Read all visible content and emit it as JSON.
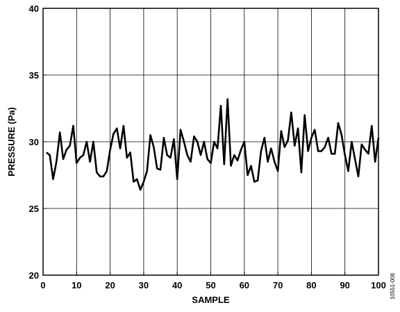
{
  "chart_data": {
    "type": "line",
    "xlabel": "SAMPLE",
    "ylabel": "PRESSURE (Pa)",
    "xlim": [
      0,
      100
    ],
    "ylim": [
      20,
      40
    ],
    "x_ticks": [
      0,
      10,
      20,
      30,
      40,
      50,
      60,
      70,
      80,
      90,
      100
    ],
    "y_ticks": [
      20,
      25,
      30,
      35,
      40
    ],
    "grid": true,
    "figure_code": "10551-008",
    "series": [
      {
        "color": "#000000",
        "x": [
          1,
          2,
          3,
          4,
          5,
          6,
          7,
          8,
          9,
          10,
          11,
          12,
          13,
          14,
          15,
          16,
          17,
          18,
          19,
          20,
          21,
          22,
          23,
          24,
          25,
          26,
          27,
          28,
          29,
          30,
          31,
          32,
          33,
          34,
          35,
          36,
          37,
          38,
          39,
          40,
          41,
          42,
          43,
          44,
          45,
          46,
          47,
          48,
          49,
          50,
          51,
          52,
          53,
          54,
          55,
          56,
          57,
          58,
          59,
          60,
          61,
          62,
          63,
          64,
          65,
          66,
          67,
          68,
          69,
          70,
          71,
          72,
          73,
          74,
          75,
          76,
          77,
          78,
          79,
          80,
          81,
          82,
          83,
          84,
          85,
          86,
          87,
          88,
          89,
          90,
          91,
          92,
          93,
          94,
          95,
          96,
          97,
          98,
          99,
          100
        ],
        "values": [
          29.2,
          29.0,
          27.2,
          28.5,
          30.7,
          28.7,
          29.4,
          29.7,
          31.2,
          28.4,
          28.8,
          29.0,
          30.0,
          28.5,
          30.0,
          27.7,
          27.4,
          27.4,
          27.8,
          29.4,
          30.6,
          31.0,
          29.5,
          31.2,
          28.8,
          29.2,
          27.0,
          27.2,
          26.4,
          27.0,
          27.8,
          30.5,
          29.6,
          28.0,
          27.9,
          30.3,
          29.0,
          28.8,
          30.2,
          27.2,
          30.9,
          30.0,
          29.0,
          28.5,
          30.4,
          30.0,
          29.0,
          30.0,
          28.7,
          28.4,
          30.0,
          29.5,
          32.7,
          28.3,
          33.2,
          28.2,
          29.0,
          28.6,
          29.4,
          30.0,
          27.5,
          28.2,
          27.0,
          27.1,
          29.3,
          30.3,
          28.5,
          29.5,
          28.5,
          27.8,
          30.8,
          29.6,
          30.1,
          32.2,
          29.7,
          31.0,
          27.7,
          32.0,
          29.3,
          30.3,
          30.9,
          29.3,
          29.3,
          29.6,
          30.3,
          29.1,
          29.1,
          31.4,
          30.5,
          29.0,
          27.8,
          30.0,
          28.7,
          27.4,
          29.8,
          29.4,
          29.1,
          31.2,
          28.5,
          30.3
        ]
      }
    ]
  }
}
